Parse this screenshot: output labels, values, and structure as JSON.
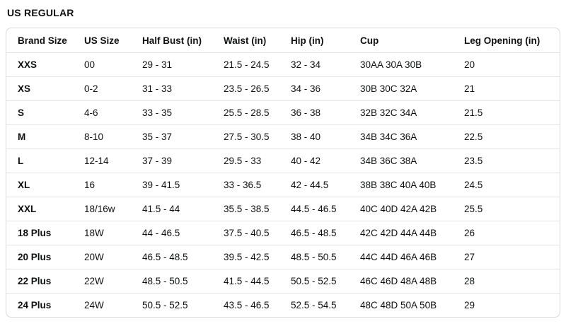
{
  "page_title": "US REGULAR",
  "table": {
    "columns": [
      "Brand Size",
      "US Size",
      "Half Bust (in)",
      "Waist (in)",
      "Hip (in)",
      "Cup",
      "Leg Opening (in)"
    ],
    "rows": [
      [
        "XXS",
        "00",
        "29 - 31",
        "21.5 - 24.5",
        "32 - 34",
        "30AA 30A 30B",
        "20"
      ],
      [
        "XS",
        "0-2",
        "31 - 33",
        "23.5 - 26.5",
        "34 - 36",
        "30B 30C 32A",
        "21"
      ],
      [
        "S",
        "4-6",
        "33 - 35",
        "25.5 - 28.5",
        "36 - 38",
        "32B 32C 34A",
        "21.5"
      ],
      [
        "M",
        "8-10",
        "35 - 37",
        "27.5 - 30.5",
        "38 - 40",
        "34B 34C 36A",
        "22.5"
      ],
      [
        "L",
        "12-14",
        "37 - 39",
        "29.5 - 33",
        "40 - 42",
        "34B 36C 38A",
        "23.5"
      ],
      [
        "XL",
        "16",
        "39 - 41.5",
        "33 - 36.5",
        "42 - 44.5",
        "38B 38C 40A 40B",
        "24.5"
      ],
      [
        "XXL",
        "18/16w",
        "41.5 - 44",
        "35.5 - 38.5",
        "44.5 - 46.5",
        "40C 40D 42A 42B",
        "25.5"
      ],
      [
        "18 Plus",
        "18W",
        "44 - 46.5",
        "37.5 - 40.5",
        "46.5 - 48.5",
        "42C 42D 44A 44B",
        "26"
      ],
      [
        "20 Plus",
        "20W",
        "46.5 - 48.5",
        "39.5 - 42.5",
        "48.5 - 50.5",
        "44C 44D 46A 46B",
        "27"
      ],
      [
        "22 Plus",
        "22W",
        "48.5 - 50.5",
        "41.5 - 44.5",
        "50.5 - 52.5",
        "46C 46D 48A 48B",
        "28"
      ],
      [
        "24 Plus",
        "24W",
        "50.5 - 52.5",
        "43.5 - 46.5",
        "52.5 - 54.5",
        "48C 48D 50A 50B",
        "29"
      ]
    ]
  },
  "colors": {
    "text": "#0f1111",
    "table_border": "#d5d9d9",
    "row_divider": "#e3e3e3",
    "background": "#ffffff"
  }
}
